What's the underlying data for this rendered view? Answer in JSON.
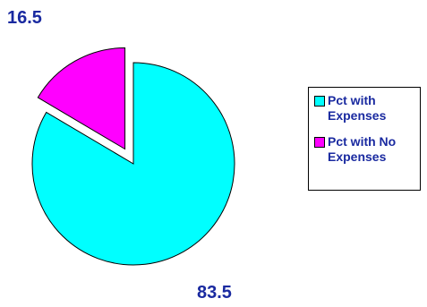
{
  "chart_data": {
    "type": "pie",
    "title": "",
    "legend_position": "right",
    "text_color": "#1a2aa0",
    "slices": [
      {
        "name": "Pct with Expenses",
        "value": 83.5,
        "label": "83.5",
        "color": "#00ffff",
        "exploded": false
      },
      {
        "name": "Pct with No Expenses",
        "value": 16.5,
        "label": "16.5",
        "color": "#ff00ff",
        "exploded": true
      }
    ]
  }
}
